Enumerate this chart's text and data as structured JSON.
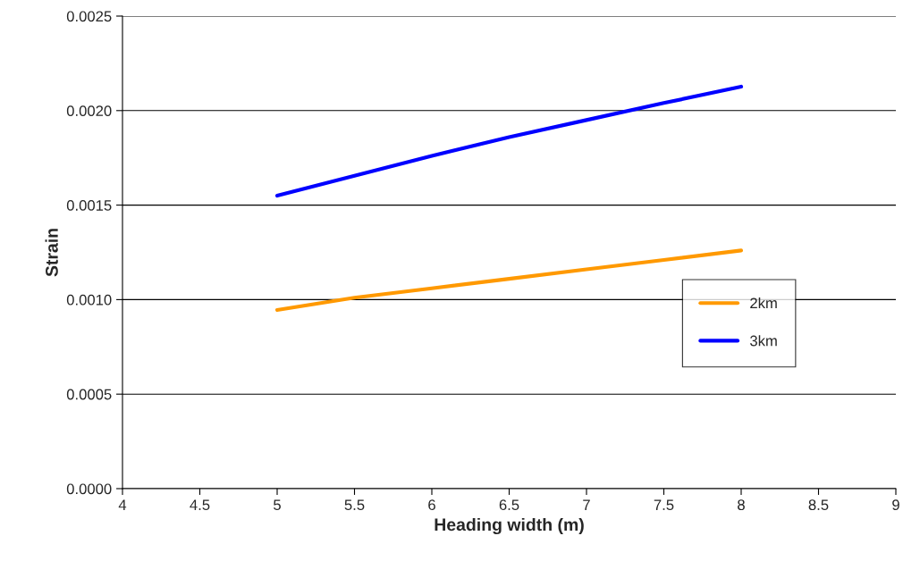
{
  "chart_data": {
    "type": "line",
    "xlabel": "Heading width (m)",
    "ylabel": "Strain",
    "x": [
      5,
      5.5,
      6,
      6.5,
      7,
      7.5,
      8
    ],
    "series": [
      {
        "name": "2km",
        "color": "#ff9900",
        "values": [
          0.000945,
          0.00101,
          0.00106,
          0.00111,
          0.00116,
          0.00121,
          0.00126
        ]
      },
      {
        "name": "3km",
        "color": "#0000ff",
        "values": [
          0.00155,
          0.001655,
          0.00176,
          0.00186,
          0.00195,
          0.00204,
          0.002127
        ]
      }
    ],
    "xlim": [
      4,
      9
    ],
    "xticks": [
      4,
      4.5,
      5,
      5.5,
      6,
      6.5,
      7,
      7.5,
      8,
      8.5,
      9
    ],
    "ylim": [
      0,
      0.0025
    ],
    "yticks": [
      {
        "value": 0,
        "label": "0.0000"
      },
      {
        "value": 0.0005,
        "label": "0.0005"
      },
      {
        "value": 0.001,
        "label": "0.0010"
      },
      {
        "value": 0.0015,
        "label": "0.0015"
      },
      {
        "value": 0.002,
        "label": "0.0020"
      },
      {
        "value": 0.0025,
        "label": "0.0025"
      }
    ],
    "grid": "y",
    "legend": "right",
    "marker": "none",
    "line_style": "solid"
  }
}
